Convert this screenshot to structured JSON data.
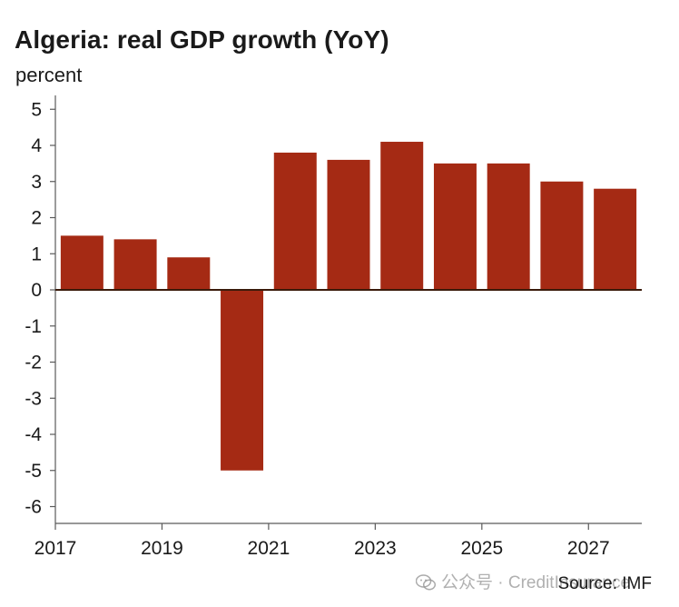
{
  "colors": {
    "bar": "#a52a14",
    "axis": "#5a5a5a",
    "zero_line": "#3a1a0a",
    "text": "#1a1a1a"
  },
  "footer": {
    "source": "Source: IMF",
    "watermark": "公众号 · CreditInsurance"
  },
  "chart_data": {
    "type": "bar",
    "title": "Algeria: real GDP growth (YoY)",
    "ylabel": "percent",
    "xlabel": "",
    "categories": [
      "2017",
      "2018",
      "2019",
      "2020",
      "2021",
      "2022",
      "2023",
      "2024",
      "2025",
      "2026",
      "2027"
    ],
    "values": [
      1.5,
      1.4,
      0.9,
      -5.0,
      3.8,
      3.6,
      4.1,
      3.5,
      3.5,
      3.0,
      2.8
    ],
    "x_tick_labels": [
      "2017",
      "2019",
      "2021",
      "2023",
      "2025",
      "2027"
    ],
    "y_ticks": [
      5,
      4,
      3,
      2,
      1,
      0,
      -1,
      -2,
      -3,
      -4,
      -5,
      -6
    ],
    "ylim": [
      -6.5,
      5.4
    ],
    "grid": false,
    "legend": "none"
  }
}
